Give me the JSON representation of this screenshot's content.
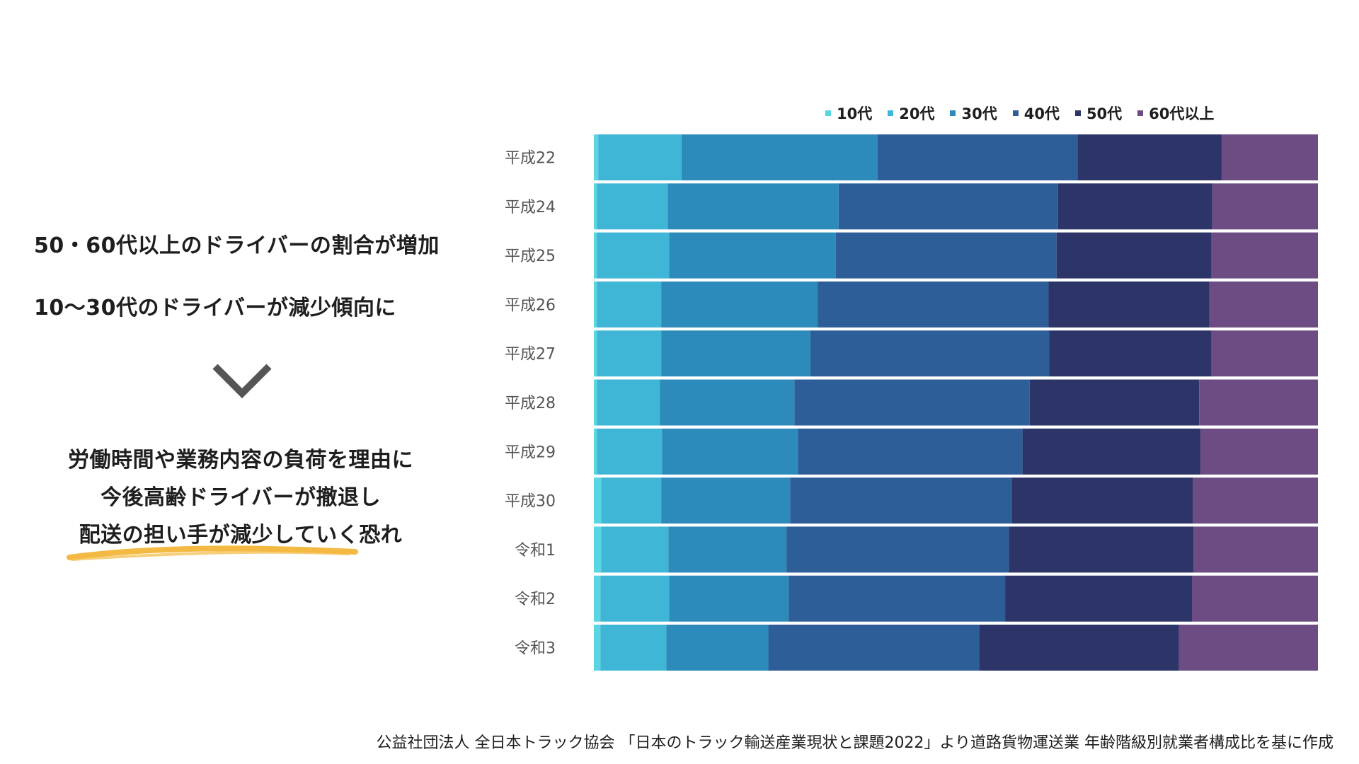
{
  "findings": {
    "line1": "50・60代以上のドライバーの割合が増加",
    "line2": "10〜30代のドライバーが減少傾向に"
  },
  "concern": {
    "line1": "労働時間や業務内容の負荷を理由に",
    "line2": "今後高齢ドライバーが撤退し",
    "line3": "配送の担い手が減少していく恐れ"
  },
  "source": "公益社団法人 全日本トラック協会 「日本のトラック輸送産業現状と課題2022」より道路貨物運送業 年齢階級別就業者構成比を基に作成",
  "colors": {
    "10代": "#5ad6e2",
    "20代": "#40b6d6",
    "30代": "#2d8bbb",
    "40代": "#2d5e98",
    "50代": "#2c3468",
    "60代以上": "#6c4c82",
    "underline": "#f4b942",
    "chevron": "#555555"
  },
  "chart_data": {
    "type": "bar",
    "orientation": "horizontal",
    "stacked": true,
    "normalized": true,
    "title": "",
    "xlabel": "",
    "ylabel": "",
    "xlim": [
      0,
      100
    ],
    "legend_position": "top-right",
    "categories": [
      "平成22",
      "平成24",
      "平成25",
      "平成26",
      "平成27",
      "平成28",
      "平成29",
      "平成30",
      "令和1",
      "令和2",
      "令和3"
    ],
    "series": [
      {
        "name": "10代",
        "values": [
          0.6,
          0.4,
          0.4,
          0.4,
          0.4,
          0.4,
          0.4,
          1.0,
          1.0,
          0.9,
          0.9
        ]
      },
      {
        "name": "20代",
        "values": [
          11.5,
          9.8,
          10.0,
          8.9,
          8.9,
          8.7,
          9.0,
          8.3,
          9.3,
          9.5,
          9.1
        ]
      },
      {
        "name": "30代",
        "values": [
          27.1,
          23.6,
          23.0,
          21.6,
          20.6,
          18.6,
          18.8,
          17.8,
          16.3,
          16.5,
          14.1
        ]
      },
      {
        "name": "40代",
        "values": [
          27.6,
          30.3,
          30.5,
          31.9,
          33.0,
          32.5,
          31.0,
          30.6,
          30.7,
          29.9,
          29.1
        ]
      },
      {
        "name": "50代",
        "values": [
          19.9,
          21.3,
          21.4,
          22.2,
          22.4,
          23.4,
          24.6,
          25.0,
          25.5,
          25.8,
          27.6
        ]
      },
      {
        "name": "60代以上",
        "values": [
          13.3,
          14.6,
          14.7,
          15.0,
          14.7,
          16.4,
          16.2,
          17.3,
          17.2,
          17.4,
          19.2
        ]
      }
    ]
  }
}
